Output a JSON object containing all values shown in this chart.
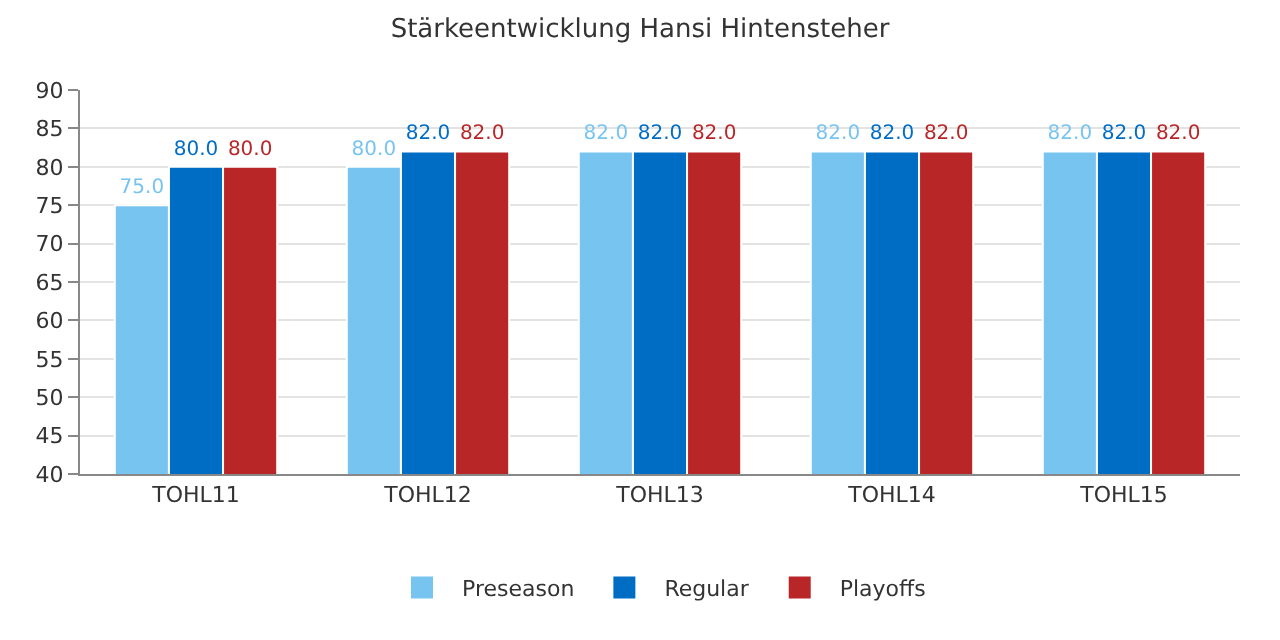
{
  "chart_data": {
    "type": "bar",
    "title": "Stärkeentwicklung Hansi Hintensteher",
    "categories": [
      "TOHL11",
      "TOHL12",
      "TOHL13",
      "TOHL14",
      "TOHL15"
    ],
    "series": [
      {
        "name": "Preseason",
        "color": "#77c4f0",
        "values": [
          75,
          80,
          82,
          82,
          82
        ],
        "value_labels": [
          "75.0",
          "80.0",
          "82.0",
          "82.0",
          "82.0"
        ]
      },
      {
        "name": "Regular",
        "color": "#006dc4",
        "values": [
          80,
          82,
          82,
          82,
          82
        ],
        "value_labels": [
          "80.0",
          "82.0",
          "82.0",
          "82.0",
          "82.0"
        ]
      },
      {
        "name": "Playoffs",
        "color": "#b82628",
        "values": [
          80,
          82,
          82,
          82,
          82
        ],
        "value_labels": [
          "80.0",
          "82.0",
          "82.0",
          "82.0",
          "82.0"
        ]
      }
    ],
    "ylim": [
      40,
      90
    ],
    "yticks": [
      40,
      45,
      50,
      55,
      60,
      65,
      70,
      75,
      80,
      85,
      90
    ],
    "grid": "y",
    "legend": "bottom"
  }
}
